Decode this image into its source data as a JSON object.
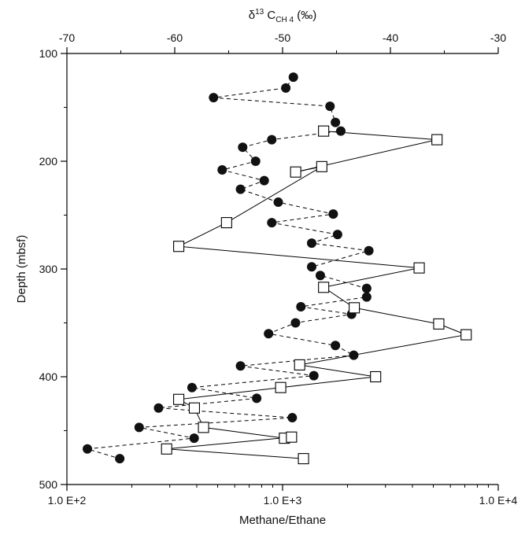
{
  "chart_data": {
    "type": "scatter",
    "x_bottom": {
      "label": "Methane/Ethane",
      "scale": "log",
      "range": [
        100,
        10000
      ],
      "ticks": [
        100,
        1000,
        10000
      ],
      "tick_labels": [
        "1.0 E+2",
        "1.0 E+3",
        "1.0 E+4"
      ]
    },
    "x_top": {
      "label_main": "δ",
      "label_sup": "13",
      "label_mid": " C",
      "label_sub": "CH 4",
      "label_unit": " (‰)",
      "range": [
        -70,
        -30
      ],
      "ticks": [
        -70,
        -60,
        -50,
        -40,
        -30
      ],
      "tick_labels": [
        "-70",
        "-60",
        "-50",
        "-40",
        "-30"
      ]
    },
    "y": {
      "label": "Depth (mbsf)",
      "range": [
        100,
        500
      ],
      "inverted": true,
      "ticks": [
        100,
        200,
        300,
        400,
        500
      ],
      "tick_labels": [
        "100",
        "200",
        "300",
        "400",
        "500"
      ]
    },
    "series": [
      {
        "marker": "filled-circle",
        "line": "dashed",
        "axis": "top",
        "points": [
          {
            "x": -49.0,
            "y": 122
          },
          {
            "x": -49.7,
            "y": 132
          },
          {
            "x": -56.4,
            "y": 141
          },
          {
            "x": -45.6,
            "y": 149
          },
          {
            "x": -45.1,
            "y": 164
          },
          {
            "x": -44.6,
            "y": 172
          },
          {
            "x": -51.0,
            "y": 180
          },
          {
            "x": -53.7,
            "y": 187
          },
          {
            "x": -52.5,
            "y": 200
          },
          {
            "x": -55.6,
            "y": 208
          },
          {
            "x": -51.7,
            "y": 218
          },
          {
            "x": -53.9,
            "y": 226
          },
          {
            "x": -50.4,
            "y": 238
          },
          {
            "x": -45.3,
            "y": 249
          },
          {
            "x": -51.0,
            "y": 257
          },
          {
            "x": -44.9,
            "y": 268
          },
          {
            "x": -47.3,
            "y": 276
          },
          {
            "x": -42.0,
            "y": 283
          },
          {
            "x": -47.3,
            "y": 298
          },
          {
            "x": -46.5,
            "y": 306
          },
          {
            "x": -42.2,
            "y": 318
          },
          {
            "x": -42.2,
            "y": 326
          },
          {
            "x": -48.3,
            "y": 335
          },
          {
            "x": -43.6,
            "y": 342
          },
          {
            "x": -48.8,
            "y": 350
          },
          {
            "x": -51.3,
            "y": 360
          },
          {
            "x": -45.1,
            "y": 371
          },
          {
            "x": -43.4,
            "y": 380
          },
          {
            "x": -53.9,
            "y": 390
          },
          {
            "x": -47.1,
            "y": 399
          },
          {
            "x": -58.4,
            "y": 410
          },
          {
            "x": -52.4,
            "y": 420
          },
          {
            "x": -61.5,
            "y": 429
          },
          {
            "x": -49.1,
            "y": 438
          },
          {
            "x": -63.3,
            "y": 447
          },
          {
            "x": -58.2,
            "y": 457
          },
          {
            "x": -68.1,
            "y": 467
          },
          {
            "x": -65.1,
            "y": 476
          }
        ]
      },
      {
        "marker": "open-square",
        "line": "solid",
        "axis": "bottom",
        "points": [
          {
            "x": 1550,
            "y": 172
          },
          {
            "x": 5200,
            "y": 180
          },
          {
            "x": 1150,
            "y": 210
          },
          {
            "x": 1520,
            "y": 205
          },
          {
            "x": 550,
            "y": 257
          },
          {
            "x": 330,
            "y": 279
          },
          {
            "x": 4300,
            "y": 299
          },
          {
            "x": 1550,
            "y": 317
          },
          {
            "x": 2150,
            "y": 336
          },
          {
            "x": 5300,
            "y": 351
          },
          {
            "x": 7100,
            "y": 361
          },
          {
            "x": 1200,
            "y": 389
          },
          {
            "x": 2700,
            "y": 400
          },
          {
            "x": 980,
            "y": 410
          },
          {
            "x": 330,
            "y": 421
          },
          {
            "x": 390,
            "y": 429
          },
          {
            "x": 430,
            "y": 447
          },
          {
            "x": 1020,
            "y": 457
          },
          {
            "x": 1100,
            "y": 456
          },
          {
            "x": 290,
            "y": 467
          },
          {
            "x": 1250,
            "y": 476
          }
        ]
      }
    ]
  }
}
